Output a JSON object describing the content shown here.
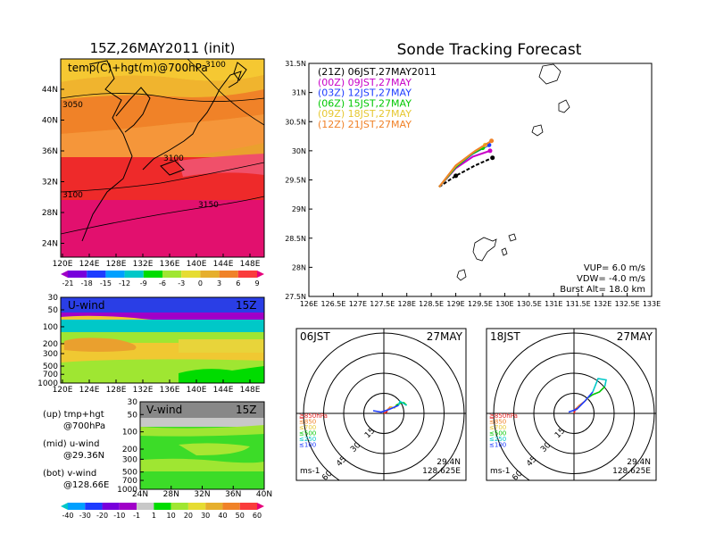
{
  "left": {
    "title": "15Z,26MAY2011 (init)",
    "map_label": "temp(C)+hgt(m)@700hPa",
    "map_contours": [
      "3050",
      "3100",
      "3100",
      "3150",
      "3100"
    ],
    "map_lat_ticks": [
      "44N",
      "40N",
      "36N",
      "32N",
      "28N",
      "24N"
    ],
    "lon_ticks": [
      "120E",
      "124E",
      "128E",
      "132E",
      "136E",
      "140E",
      "144E",
      "148E"
    ],
    "temp_scale": {
      "labels": [
        "-21",
        "-18",
        "-15",
        "-12",
        "-9",
        "-6",
        "-3",
        "0",
        "3",
        "6",
        "9"
      ],
      "colors": [
        "#a000c8",
        "#7800dc",
        "#1e3cff",
        "#00a0ff",
        "#00c8c8",
        "#00dc00",
        "#a0e632",
        "#e6dc32",
        "#e6af2d",
        "#f08228",
        "#fa3c3c",
        "#e6007a"
      ]
    },
    "uwind": {
      "label": "U-wind",
      "time": "15Z",
      "p_ticks": [
        "30",
        "50",
        "100",
        "200",
        "300",
        "500",
        "700",
        "1000"
      ]
    },
    "vwind": {
      "label": "V-wind",
      "time": "15Z",
      "p_ticks": [
        "30",
        "50",
        "100",
        "200",
        "300",
        "500",
        "700",
        "1000"
      ],
      "lat_ticks": [
        "24N",
        "28N",
        "32N",
        "36N",
        "40N"
      ]
    },
    "notes": [
      {
        "line1": "(up) tmp+hgt",
        "line2": "@700hPa"
      },
      {
        "line1": "(mid) u-wind",
        "line2": "@29.36N"
      },
      {
        "line1": "(bot) v-wind",
        "line2": "@128.66E"
      }
    ],
    "wind_scale": {
      "labels": [
        "-40",
        "-30",
        "-20",
        "-10",
        "-1",
        "1",
        "10",
        "20",
        "30",
        "40",
        "50",
        "60"
      ],
      "colors": [
        "#00c8c8",
        "#00a0ff",
        "#1e3cff",
        "#7800dc",
        "#a000c8",
        "#c8c8c8",
        "#00dc00",
        "#a0e632",
        "#e6dc32",
        "#e6af2d",
        "#f08228",
        "#fa3c3c",
        "#e6007a"
      ]
    }
  },
  "main": {
    "title": "Sonde Tracking Forecast",
    "legend": [
      {
        "text": "(21Z) 06JST,27MAY2011",
        "color": "#000000"
      },
      {
        "text": "(00Z) 09JST,27MAY",
        "color": "#c800c8"
      },
      {
        "text": "(03Z) 12JST,27MAY",
        "color": "#1e3cff"
      },
      {
        "text": "(06Z) 15JST,27MAY",
        "color": "#00c800"
      },
      {
        "text": "(09Z) 18JST,27MAY",
        "color": "#e6c832"
      },
      {
        "text": "(12Z) 21JST,27MAY",
        "color": "#f08228"
      }
    ],
    "info": [
      "VUP= 6.0 m/s",
      "VDW= -4.0 m/s",
      "Burst Alt= 18.0 km"
    ],
    "x_ticks": [
      "126E",
      "126.5E",
      "127E",
      "127.5E",
      "128E",
      "128.5E",
      "129E",
      "129.5E",
      "130E",
      "130.5E",
      "131E",
      "131.5E",
      "132E",
      "132.5E",
      "133E"
    ],
    "y_ticks": [
      "31.5N",
      "31N",
      "30.5N",
      "30N",
      "29.5N",
      "29N",
      "28.5N",
      "28N",
      "27.5N"
    ]
  },
  "hodo1": {
    "time": "06JST",
    "date": "27MAY",
    "lat": "29.4N",
    "lon": "128.625E",
    "unit": "ms-1",
    "rings": [
      "15",
      "30",
      "45",
      "60"
    ]
  },
  "hodo2": {
    "time": "18JST",
    "date": "27MAY",
    "lat": "29.4N",
    "lon": "128.625E",
    "unit": "ms-1",
    "rings": [
      "15",
      "30",
      "45",
      "60"
    ]
  },
  "hodo_legend": [
    {
      "text": "≧850hPa",
      "color": "#e61e1e"
    },
    {
      "text": "≤850",
      "color": "#f08228"
    },
    {
      "text": "≤700",
      "color": "#e6c832"
    },
    {
      "text": "≤500",
      "color": "#00c800"
    },
    {
      "text": "≤250",
      "color": "#00c8c8"
    },
    {
      "text": "≤100",
      "color": "#1e3cff"
    }
  ],
  "chart_data": [
    {
      "type": "line",
      "title": "Sonde Tracking Forecast",
      "x_range": [
        126,
        133
      ],
      "y_range": [
        27.5,
        31.5
      ],
      "series": [
        {
          "name": "(21Z) 06JST,27MAY2011",
          "x": [
            128.66,
            129.0,
            129.4,
            129.75
          ],
          "y": [
            29.38,
            29.57,
            29.75,
            29.88
          ]
        },
        {
          "name": "(00Z) 09JST,27MAY",
          "x": [
            128.66,
            129.0,
            129.35,
            129.7
          ],
          "y": [
            29.38,
            29.7,
            29.9,
            30.0
          ]
        },
        {
          "name": "(03Z) 12JST,27MAY",
          "x": [
            128.66,
            129.0,
            129.35,
            129.68
          ],
          "y": [
            29.38,
            29.72,
            29.95,
            30.1
          ]
        },
        {
          "name": "(06Z) 15JST,27MAY",
          "x": [
            128.66,
            129.0,
            129.3,
            129.55
          ],
          "y": [
            29.38,
            29.72,
            29.93,
            30.05
          ]
        },
        {
          "name": "(09Z) 18JST,27MAY",
          "x": [
            128.66,
            129.0,
            129.35,
            129.6
          ],
          "y": [
            29.38,
            29.74,
            29.97,
            30.1
          ]
        },
        {
          "name": "(12Z) 21JST,27MAY",
          "x": [
            128.66,
            129.0,
            129.4,
            129.73
          ],
          "y": [
            29.38,
            29.75,
            30.0,
            30.17
          ]
        }
      ]
    },
    {
      "type": "line",
      "title": "Hodograph 06JST 27MAY",
      "series": [
        {
          "name": "≧850hPa",
          "u": [
            0,
            2,
            3
          ],
          "v": [
            0,
            1,
            3
          ]
        },
        {
          "name": "≤850",
          "u": [
            3,
            5
          ],
          "v": [
            3,
            5
          ]
        },
        {
          "name": "≤700",
          "u": [
            5,
            8,
            9
          ],
          "v": [
            5,
            4,
            6
          ]
        },
        {
          "name": "≤500",
          "u": [
            9,
            13,
            15,
            17
          ],
          "v": [
            6,
            8,
            8,
            6
          ]
        },
        {
          "name": "≤250",
          "u": [
            17,
            12,
            11
          ],
          "v": [
            6,
            9,
            6
          ]
        },
        {
          "name": "≤100",
          "u": [
            11,
            4,
            -2,
            -8
          ],
          "v": [
            6,
            3,
            1,
            2
          ]
        }
      ]
    },
    {
      "type": "line",
      "title": "Hodograph 18JST 27MAY",
      "series": [
        {
          "name": "≧850hPa",
          "u": [
            0,
            1,
            2
          ],
          "v": [
            0,
            3,
            4
          ]
        },
        {
          "name": "≤850",
          "u": [
            2,
            4,
            8
          ],
          "v": [
            4,
            6,
            9
          ]
        },
        {
          "name": "≤700",
          "u": [
            8,
            11
          ],
          "v": [
            9,
            12
          ]
        },
        {
          "name": "≤500",
          "u": [
            11,
            14,
            19,
            23
          ],
          "v": [
            12,
            14,
            16,
            20
          ]
        },
        {
          "name": "≤250",
          "u": [
            23,
            24,
            18,
            14
          ],
          "v": [
            20,
            25,
            26,
            16
          ]
        },
        {
          "name": "≤100",
          "u": [
            14,
            8,
            2,
            -4
          ],
          "v": [
            16,
            9,
            3,
            1
          ]
        }
      ]
    }
  ]
}
